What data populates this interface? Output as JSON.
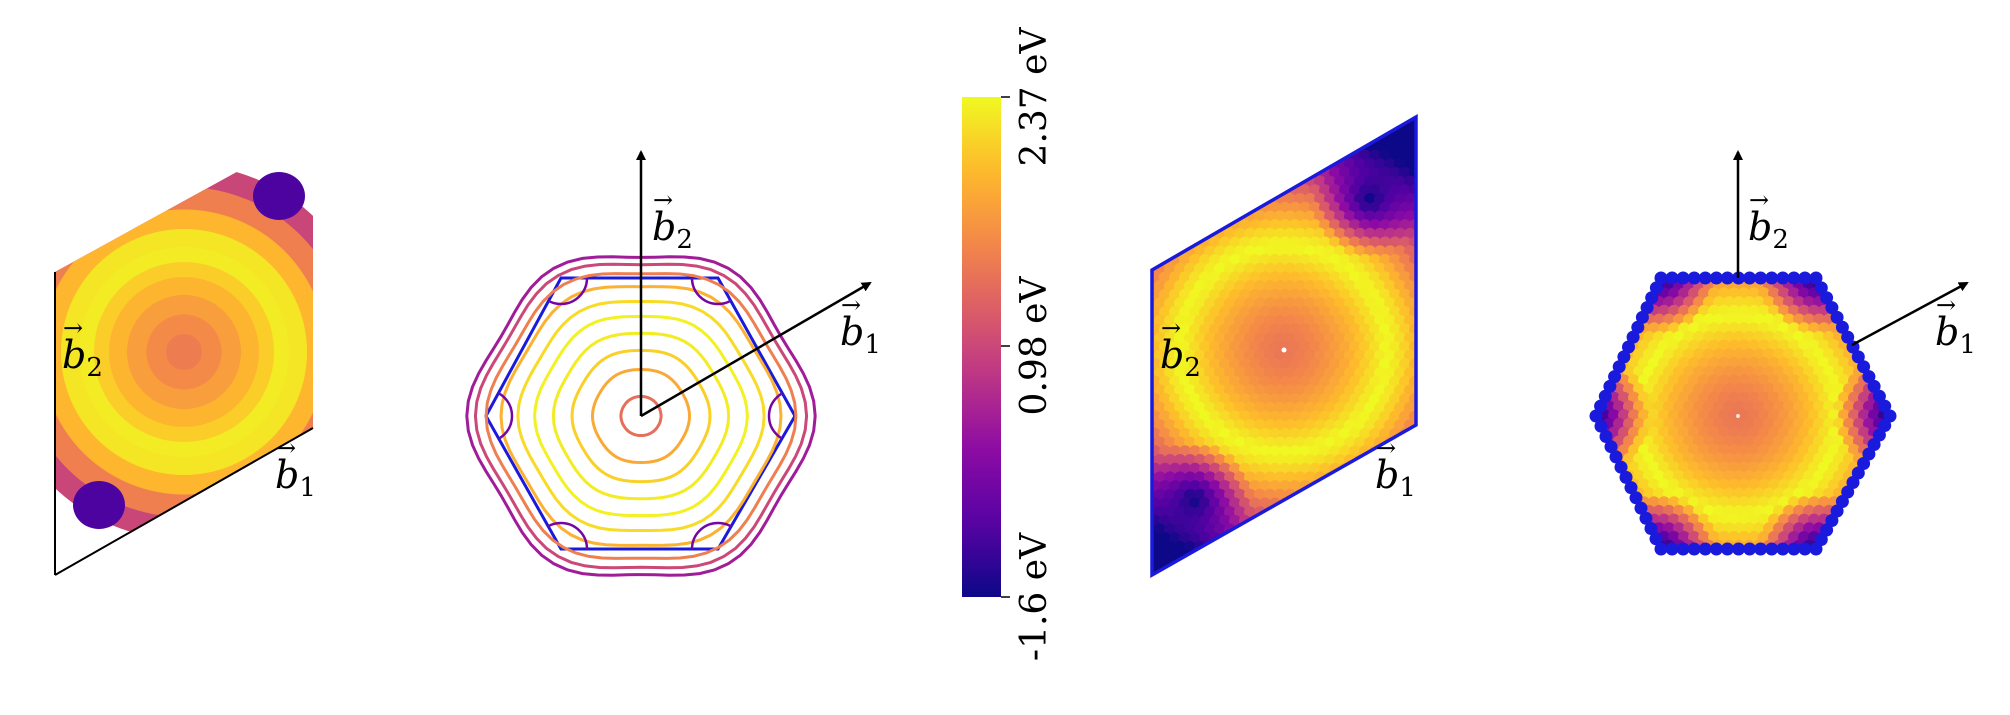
{
  "chart_data": {
    "type": "heatmap",
    "panels": [
      {
        "style": "filled-contour",
        "cell": "rhombus",
        "axes": [
          "b1",
          "b2"
        ]
      },
      {
        "style": "contour-lines",
        "cell": "hexagon",
        "axes": [
          "b1",
          "b2"
        ]
      },
      {
        "style": "scatter-grid",
        "cell": "rhombus",
        "axes": [
          "b1",
          "b2"
        ]
      },
      {
        "style": "scatter-grid",
        "cell": "hexagon",
        "axes": [
          "b1",
          "b2"
        ]
      }
    ],
    "vector_labels": {
      "b1": {
        "main": "b",
        "sub": "1"
      },
      "b2": {
        "main": "b",
        "sub": "2"
      }
    },
    "colorbar": {
      "colormap": "plasma",
      "min": -1.6,
      "max": 2.37,
      "ticks": [
        {
          "value": 2.37,
          "label": "2.37 eV"
        },
        {
          "value": 0.98,
          "label": "0.98 eV"
        },
        {
          "value": -1.6,
          "label": "-1.6 eV"
        }
      ]
    },
    "band_feature": {
      "center_value": 1.0,
      "ring_max_value": 2.37,
      "corner_min_value": -1.6
    },
    "colors": {
      "cell_boundary": "#1a1adc",
      "axis": "#000000",
      "center_marker": "#ffffff"
    }
  }
}
